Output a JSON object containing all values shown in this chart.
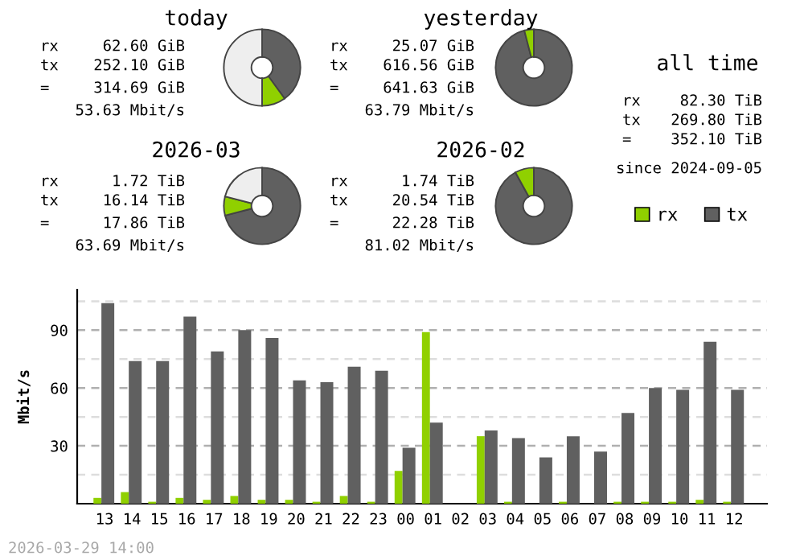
{
  "chart_data": [
    {
      "type": "donut",
      "title": "today",
      "categories": [
        null,
        null,
        null
      ],
      "values": [
        40,
        10,
        50
      ],
      "colors": [
        "#606060",
        "#90d000",
        "#eeeeee"
      ],
      "annotations": [
        "rx",
        "62.60 GiB",
        "tx",
        "252.10 GiB",
        "=",
        "314.69 GiB",
        "53.63 Mbit/s"
      ]
    },
    {
      "type": "donut",
      "title": "yesterday",
      "categories": [
        null,
        null
      ],
      "values": [
        96,
        4
      ],
      "colors": [
        "#606060",
        "#90d000"
      ],
      "annotations": [
        "rx",
        "25.07 GiB",
        "tx",
        "616.56 GiB",
        "=",
        "641.63 GiB",
        "63.79 Mbit/s"
      ]
    },
    {
      "type": "other",
      "title": "all time",
      "annotations": [
        "rx",
        "82.30 TiB",
        "tx",
        "269.80 TiB",
        "=",
        "352.10 TiB",
        "since 2024-09-05"
      ]
    },
    {
      "type": "donut",
      "title": "2026-03",
      "categories": [
        null,
        null,
        null
      ],
      "values": [
        71,
        8,
        21
      ],
      "colors": [
        "#606060",
        "#90d000",
        "#eeeeee"
      ],
      "annotations": [
        "rx",
        "1.72 TiB",
        "tx",
        "16.14 TiB",
        "=",
        "17.86 TiB",
        "63.69 Mbit/s"
      ]
    },
    {
      "type": "donut",
      "title": "2026-02",
      "categories": [
        null,
        null
      ],
      "values": [
        92,
        8
      ],
      "colors": [
        "#606060",
        "#90d000"
      ],
      "annotations": [
        "rx",
        "1.74 TiB",
        "tx",
        "20.54 TiB",
        "=",
        "22.28 TiB",
        "81.02 Mbit/s"
      ]
    },
    {
      "type": "bar",
      "ylabel": "Mbit/s",
      "categories": [
        "13",
        "14",
        "15",
        "16",
        "17",
        "18",
        "19",
        "20",
        "21",
        "22",
        "23",
        "00",
        "01",
        "02",
        "03",
        "04",
        "05",
        "06",
        "07",
        "08",
        "09",
        "10",
        "11",
        "12"
      ],
      "series": [
        {
          "name": "rx",
          "color": "#90d000",
          "values": [
            3,
            6,
            1,
            3,
            2,
            4,
            2,
            2,
            1,
            4,
            1,
            17,
            89,
            null,
            35,
            1,
            0,
            1,
            0,
            1,
            1,
            1,
            2,
            1
          ]
        },
        {
          "name": "tx",
          "color": "#606060",
          "values": [
            104,
            74,
            74,
            97,
            79,
            90,
            86,
            64,
            63,
            71,
            69,
            29,
            42,
            null,
            38,
            34,
            24,
            35,
            27,
            47,
            60,
            59,
            84,
            59
          ]
        }
      ],
      "ylim": [
        0,
        111
      ],
      "yticks": [
        {
          "value": 15,
          "label": null
        },
        30,
        {
          "value": 45,
          "label": null
        },
        60,
        {
          "value": 75,
          "label": null
        },
        90,
        {
          "value": 105,
          "label": null
        }
      ],
      "grid": "y",
      "legend": "top right",
      "annotations": [
        "2026-03-29 14:00"
      ]
    }
  ]
}
